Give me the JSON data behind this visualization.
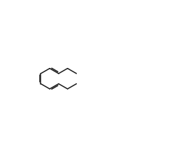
{
  "bg_color": "#ffffff",
  "line_color": "#1a1a1a",
  "figsize": [
    2.59,
    2.17
  ],
  "dpi": 100,
  "lw": 1.1,
  "fs": 6.5
}
